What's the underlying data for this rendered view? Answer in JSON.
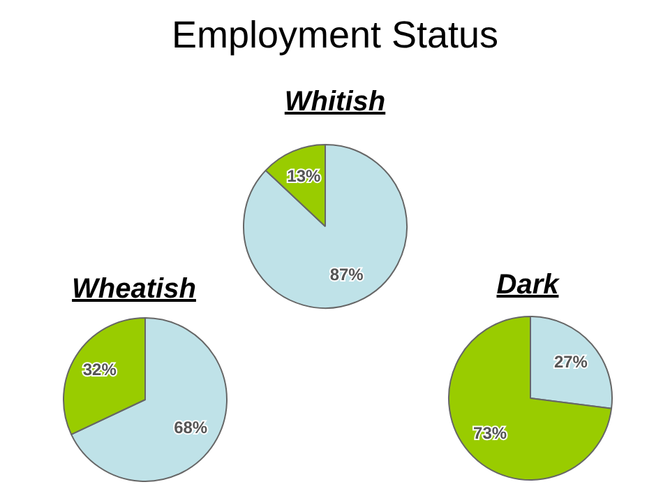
{
  "chart_data": [
    {
      "type": "other",
      "title": "Employment Status"
    },
    {
      "type": "pie",
      "title": "Whitish",
      "categories": [
        null,
        null
      ],
      "values": [
        87,
        13
      ],
      "colors": [
        "#bfe2e8",
        "#99cc00"
      ],
      "value_labels": [
        "87%",
        "13%"
      ]
    },
    {
      "type": "pie",
      "title": "Wheatish",
      "categories": [
        null,
        null
      ],
      "values": [
        68,
        32
      ],
      "colors": [
        "#bfe2e8",
        "#99cc00"
      ],
      "value_labels": [
        "68%",
        "32%"
      ]
    },
    {
      "type": "pie",
      "title": "Dark",
      "categories": [
        null,
        null
      ],
      "values": [
        27,
        73
      ],
      "colors": [
        "#bfe2e8",
        "#99cc00"
      ],
      "value_labels": [
        "27%",
        "73%"
      ]
    }
  ]
}
